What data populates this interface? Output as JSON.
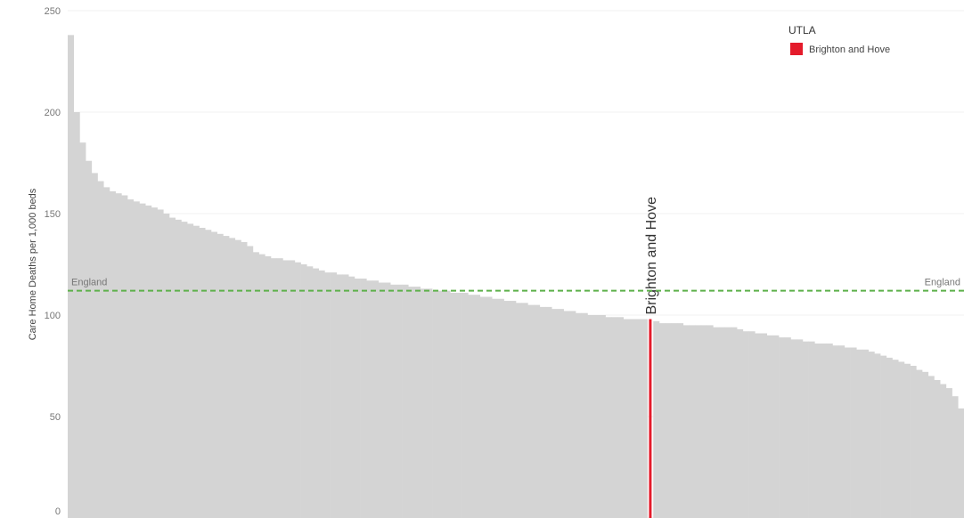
{
  "chart_data": {
    "type": "bar",
    "y_label": "Care Home Deaths per 1,000 beds",
    "ylim": [
      0,
      250
    ],
    "yticks": [
      0,
      50,
      100,
      150,
      200,
      250
    ],
    "grid": true,
    "color": "#d4d4d4",
    "legend": {
      "title": "UTLA",
      "position": "top-right",
      "entries": [
        {
          "label": "Brighton and Hove",
          "color": "#e41b2b"
        }
      ]
    },
    "reference_line": {
      "label": "England",
      "value": 112,
      "color": "#5db04a"
    },
    "categories": [
      null,
      null,
      null,
      null,
      null,
      null,
      null,
      null,
      null,
      null,
      null,
      null,
      null,
      null,
      null,
      null,
      null,
      null,
      null,
      null,
      null,
      null,
      null,
      null,
      null,
      null,
      null,
      null,
      null,
      null,
      null,
      null,
      null,
      null,
      null,
      null,
      null,
      null,
      null,
      null,
      null,
      null,
      null,
      null,
      null,
      null,
      null,
      null,
      null,
      null,
      null,
      null,
      null,
      null,
      null,
      null,
      null,
      null,
      null,
      null,
      null,
      null,
      null,
      null,
      null,
      null,
      null,
      null,
      null,
      null,
      null,
      null,
      null,
      null,
      null,
      null,
      null,
      null,
      null,
      null,
      null,
      null,
      null,
      null,
      null,
      null,
      null,
      null,
      null,
      null,
      null,
      null,
      null,
      null,
      null,
      null,
      null,
      "Brighton and Hove",
      null,
      null,
      null,
      null,
      null,
      null,
      null,
      null,
      null,
      null,
      null,
      null,
      null,
      null,
      null,
      null,
      null,
      null,
      null,
      null,
      null,
      null,
      null,
      null,
      null,
      null,
      null,
      null,
      null,
      null,
      null,
      null,
      null,
      null,
      null,
      null,
      null,
      null,
      null,
      null,
      null,
      null,
      null,
      null,
      null,
      null,
      null,
      null,
      null,
      null,
      null,
      null
    ],
    "values": [
      238,
      200,
      185,
      176,
      170,
      166,
      163,
      161,
      160,
      159,
      157,
      156,
      155,
      154,
      153,
      152,
      150,
      148,
      147,
      146,
      145,
      144,
      143,
      142,
      141,
      140,
      139,
      138,
      137,
      136,
      134,
      131,
      130,
      129,
      128,
      128,
      127,
      127,
      126,
      125,
      124,
      123,
      122,
      121,
      121,
      120,
      120,
      119,
      118,
      118,
      117,
      117,
      116,
      116,
      115,
      115,
      115,
      114,
      114,
      113,
      113,
      112,
      112,
      112,
      111,
      111,
      111,
      110,
      110,
      109,
      109,
      108,
      108,
      107,
      107,
      106,
      106,
      105,
      105,
      104,
      104,
      103,
      103,
      102,
      102,
      101,
      101,
      100,
      100,
      100,
      99,
      99,
      99,
      98,
      98,
      98,
      98,
      98,
      97,
      96,
      96,
      96,
      96,
      95,
      95,
      95,
      95,
      95,
      94,
      94,
      94,
      94,
      93,
      92,
      92,
      91,
      91,
      90,
      90,
      89,
      89,
      88,
      88,
      87,
      87,
      86,
      86,
      86,
      85,
      85,
      84,
      84,
      83,
      83,
      82,
      81,
      80,
      79,
      78,
      77,
      76,
      75,
      73,
      72,
      70,
      68,
      66,
      64,
      60,
      54
    ]
  }
}
